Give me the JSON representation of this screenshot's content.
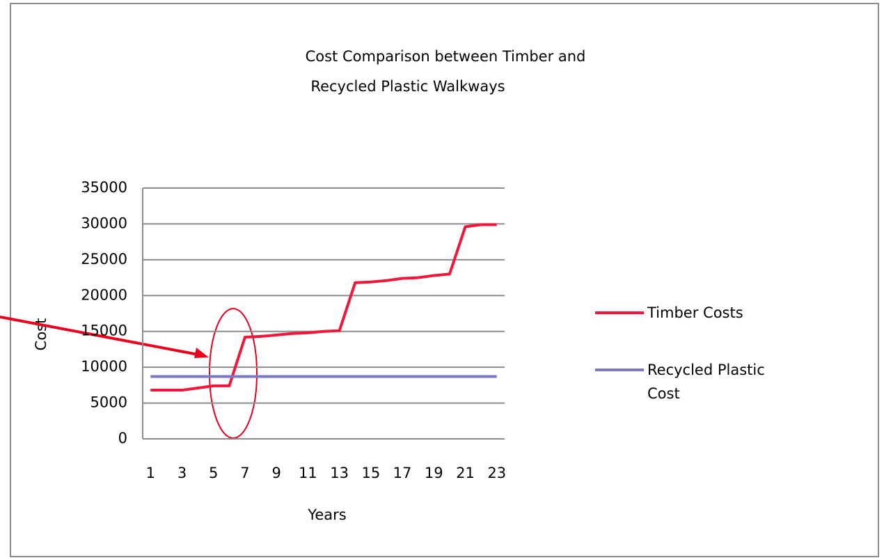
{
  "chart_data": {
    "type": "line",
    "title": [
      "Cost Comparison between Timber and",
      "Recycled Plastic Walkways"
    ],
    "x_label": "Years",
    "y_label": "Cost",
    "categories": [
      1,
      null,
      3,
      null,
      5,
      null,
      7,
      null,
      9,
      null,
      11,
      null,
      13,
      null,
      15,
      null,
      17,
      null,
      19,
      null,
      21,
      null,
      23
    ],
    "series": [
      {
        "name": "Timber Costs",
        "color": "#f0173a",
        "values": [
          6800,
          6800,
          6800,
          7100,
          7400,
          7400,
          14200,
          14300,
          14500,
          14700,
          14800,
          15000,
          15100,
          21800,
          21900,
          22100,
          22400,
          22500,
          22800,
          23000,
          29600,
          29900,
          29900
        ]
      },
      {
        "name": "Recycled Plastic Cost",
        "color": "#7b79c2",
        "values": [
          8700,
          8700,
          8700,
          8700,
          8700,
          8700,
          8700,
          8700,
          8700,
          8700,
          8700,
          8700,
          8700,
          8700,
          8700,
          8700,
          8700,
          8700,
          8700,
          8700,
          8700,
          8700,
          8700
        ]
      }
    ],
    "ylim": [
      0,
      35000
    ],
    "yticks": [
      0,
      5000,
      10000,
      15000,
      20000,
      25000,
      30000,
      35000
    ],
    "grid": true,
    "legend": "right"
  }
}
